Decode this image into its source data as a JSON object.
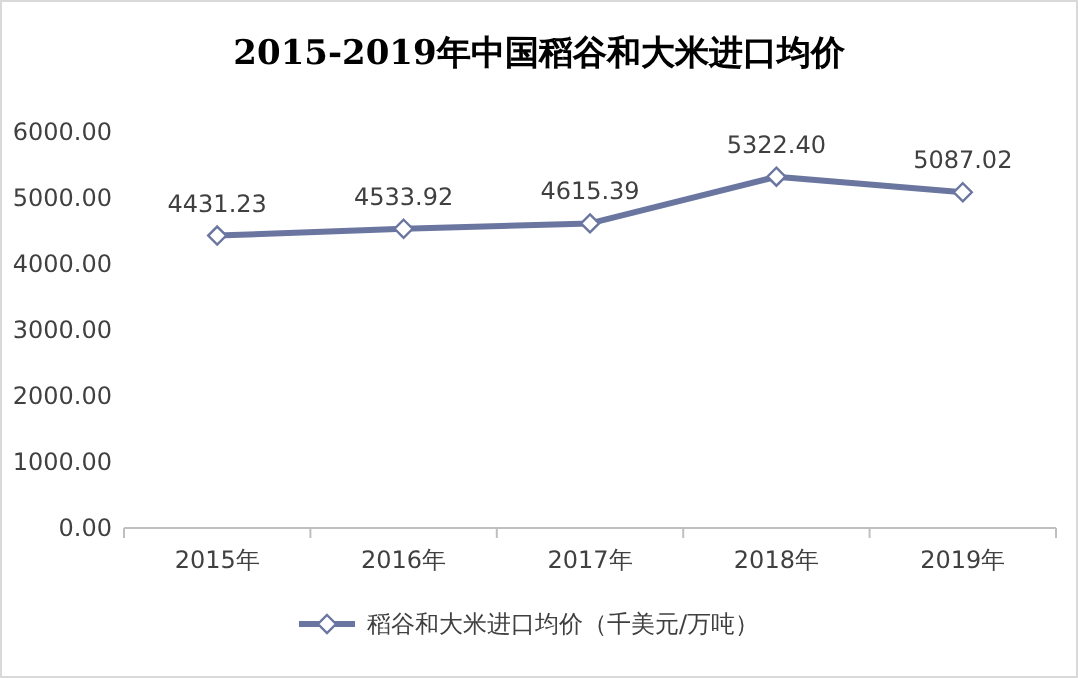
{
  "chart_data": {
    "type": "line",
    "title": "2015-2019年中国稻谷和大米进口均价",
    "categories": [
      "2015年",
      "2016年",
      "2017年",
      "2018年",
      "2019年"
    ],
    "series": [
      {
        "name": "稻谷和大米进口均价（千美元/万吨）",
        "color": "#6a76a0",
        "values": [
          4431.23,
          4533.92,
          4615.39,
          5322.4,
          5087.02
        ],
        "value_labels": [
          "4431.23",
          "4533.92",
          "4615.39",
          "5322.40",
          "5087.02"
        ]
      }
    ],
    "ylim": [
      0,
      6000
    ],
    "yticks": [
      {
        "value": 0,
        "label": "0.00"
      },
      {
        "value": 1000,
        "label": "1000.00"
      },
      {
        "value": 2000,
        "label": "2000.00"
      },
      {
        "value": 3000,
        "label": "3000.00"
      },
      {
        "value": 4000,
        "label": "4000.00"
      },
      {
        "value": 5000,
        "label": "5000.00"
      },
      {
        "value": 6000,
        "label": "6000.00"
      }
    ],
    "legend": "bottom",
    "marker": "diamond",
    "line_style": "solid"
  }
}
